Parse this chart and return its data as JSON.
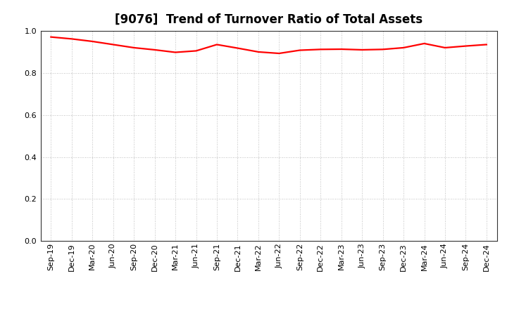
{
  "title": "[9076]  Trend of Turnover Ratio of Total Assets",
  "x_labels": [
    "Sep-19",
    "Dec-19",
    "Mar-20",
    "Jun-20",
    "Sep-20",
    "Dec-20",
    "Mar-21",
    "Jun-21",
    "Sep-21",
    "Dec-21",
    "Mar-22",
    "Jun-22",
    "Sep-22",
    "Dec-22",
    "Mar-23",
    "Jun-23",
    "Sep-23",
    "Dec-23",
    "Mar-24",
    "Jun-24",
    "Sep-24",
    "Dec-24"
  ],
  "values": [
    0.971,
    0.962,
    0.95,
    0.935,
    0.92,
    0.91,
    0.898,
    0.905,
    0.935,
    0.918,
    0.9,
    0.893,
    0.908,
    0.912,
    0.913,
    0.91,
    0.912,
    0.92,
    0.94,
    0.92,
    0.928,
    0.935
  ],
  "ylim": [
    0.0,
    1.0
  ],
  "yticks": [
    0.0,
    0.2,
    0.4,
    0.6,
    0.8,
    1.0
  ],
  "line_color": "#FF0000",
  "line_width": 1.6,
  "bg_color": "#FFFFFF",
  "plot_bg_color": "#FFFFFF",
  "grid_color": "#AAAAAA",
  "border_color": "#333333",
  "title_fontsize": 12,
  "tick_fontsize": 8
}
